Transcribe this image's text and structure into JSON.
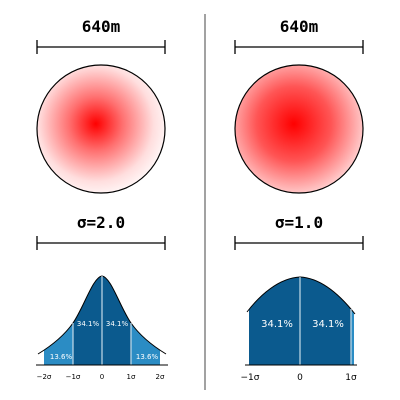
{
  "panels": [
    {
      "id": "left",
      "distance_label": "640m",
      "sigma_label": "σ=2.0",
      "sigma": 2.0,
      "percent_labels": {
        "inner": "34.1%",
        "outer": "13.6%"
      },
      "tick_labels": [
        "−2σ",
        "−1σ",
        "0",
        "1σ",
        "2σ"
      ]
    },
    {
      "id": "right",
      "distance_label": "640m",
      "sigma_label": "σ=1.0",
      "sigma": 1.0,
      "percent_labels": {
        "inner": "34.1%"
      },
      "tick_labels": [
        "−1σ",
        "0",
        "1σ"
      ]
    }
  ],
  "colors": {
    "fill_inner": "#0b5a8e",
    "fill_outer": "#2b8cc4",
    "blob_center": "#ff0000",
    "ink": "#000000",
    "divider": "#444444"
  }
}
